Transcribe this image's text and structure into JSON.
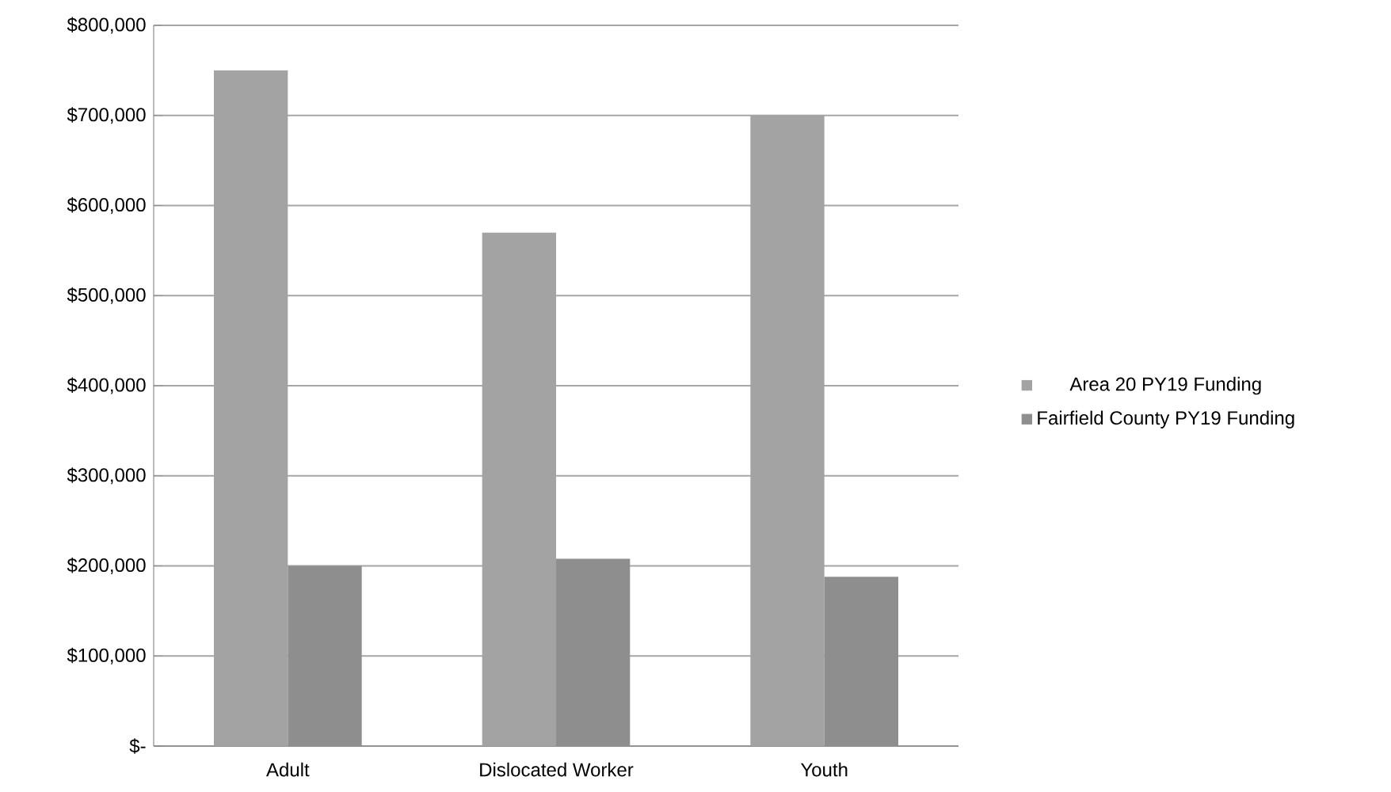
{
  "chart_data": {
    "type": "bar",
    "categories": [
      "Adult",
      "Dislocated Worker",
      "Youth"
    ],
    "series": [
      {
        "name": "Area 20 PY19 Funding",
        "color": "#a3a3a3",
        "values": [
          750000,
          570000,
          700000
        ]
      },
      {
        "name": "Fairfield County PY19 Funding",
        "color": "#8e8e8e",
        "values": [
          200000,
          208000,
          188000
        ]
      }
    ],
    "ylim": [
      0,
      800000
    ],
    "yticks": [
      {
        "value": 0,
        "label": "$-"
      },
      {
        "value": 100000,
        "label": "$100,000"
      },
      {
        "value": 200000,
        "label": "$200,000"
      },
      {
        "value": 300000,
        "label": "$300,000"
      },
      {
        "value": 400000,
        "label": "$400,000"
      },
      {
        "value": 500000,
        "label": "$500,000"
      },
      {
        "value": 600000,
        "label": "$600,000"
      },
      {
        "value": 700000,
        "label": "$700,000"
      },
      {
        "value": 800000,
        "label": "$800,000"
      }
    ],
    "grid": "y",
    "legend": "right"
  }
}
